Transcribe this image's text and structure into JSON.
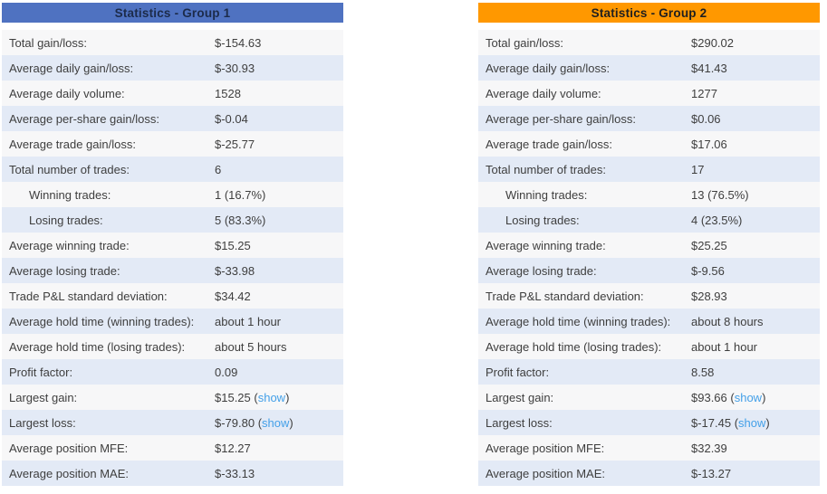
{
  "ui": {
    "paren_open": "(",
    "paren_close": ")",
    "link_color": "#44a0e8",
    "stripe_light": "#f7f7f8",
    "stripe_blue": "#e3eaf6",
    "text_color": "#3e3e3e"
  },
  "tables": [
    {
      "title": "Statistics - Group 1",
      "header_color": "#4f72c1",
      "title_color": "#1c2b4a",
      "rows": [
        {
          "label": "Total gain/loss:",
          "value": "$-154.63",
          "indent": false,
          "link": null
        },
        {
          "label": "Average daily gain/loss:",
          "value": "$-30.93",
          "indent": false,
          "link": null
        },
        {
          "label": "Average daily volume:",
          "value": "1528",
          "indent": false,
          "link": null
        },
        {
          "label": "Average per-share gain/loss:",
          "value": "$-0.04",
          "indent": false,
          "link": null
        },
        {
          "label": "Average trade gain/loss:",
          "value": "$-25.77",
          "indent": false,
          "link": null
        },
        {
          "label": "Total number of trades:",
          "value": "6",
          "indent": false,
          "link": null
        },
        {
          "label": "Winning trades:",
          "value": "1 (16.7%)",
          "indent": true,
          "link": null
        },
        {
          "label": "Losing trades:",
          "value": "5 (83.3%)",
          "indent": true,
          "link": null
        },
        {
          "label": "Average winning trade:",
          "value": "$15.25",
          "indent": false,
          "link": null
        },
        {
          "label": "Average losing trade:",
          "value": "$-33.98",
          "indent": false,
          "link": null
        },
        {
          "label": "Trade P&L standard deviation:",
          "value": "$34.42",
          "indent": false,
          "link": null
        },
        {
          "label": "Average hold time (winning trades):",
          "value": "about 1 hour",
          "indent": false,
          "link": null
        },
        {
          "label": "Average hold time (losing trades):",
          "value": "about 5 hours",
          "indent": false,
          "link": null
        },
        {
          "label": "Profit factor:",
          "value": "0.09",
          "indent": false,
          "link": null
        },
        {
          "label": "Largest gain:",
          "value": "$15.25",
          "indent": false,
          "link": "show"
        },
        {
          "label": "Largest loss:",
          "value": "$-79.80",
          "indent": false,
          "link": "show"
        },
        {
          "label": "Average position MFE:",
          "value": "$12.27",
          "indent": false,
          "link": null
        },
        {
          "label": "Average position MAE:",
          "value": "$-33.13",
          "indent": false,
          "link": null
        }
      ]
    },
    {
      "title": "Statistics - Group 2",
      "header_color": "#ff9800",
      "title_color": "#1f1f1f",
      "rows": [
        {
          "label": "Total gain/loss:",
          "value": "$290.02",
          "indent": false,
          "link": null
        },
        {
          "label": "Average daily gain/loss:",
          "value": "$41.43",
          "indent": false,
          "link": null
        },
        {
          "label": "Average daily volume:",
          "value": "1277",
          "indent": false,
          "link": null
        },
        {
          "label": "Average per-share gain/loss:",
          "value": "$0.06",
          "indent": false,
          "link": null
        },
        {
          "label": "Average trade gain/loss:",
          "value": "$17.06",
          "indent": false,
          "link": null
        },
        {
          "label": "Total number of trades:",
          "value": "17",
          "indent": false,
          "link": null
        },
        {
          "label": "Winning trades:",
          "value": "13 (76.5%)",
          "indent": true,
          "link": null
        },
        {
          "label": "Losing trades:",
          "value": "4 (23.5%)",
          "indent": true,
          "link": null
        },
        {
          "label": "Average winning trade:",
          "value": "$25.25",
          "indent": false,
          "link": null
        },
        {
          "label": "Average losing trade:",
          "value": "$-9.56",
          "indent": false,
          "link": null
        },
        {
          "label": "Trade P&L standard deviation:",
          "value": "$28.93",
          "indent": false,
          "link": null
        },
        {
          "label": "Average hold time (winning trades):",
          "value": "about 8 hours",
          "indent": false,
          "link": null
        },
        {
          "label": "Average hold time (losing trades):",
          "value": "about 1 hour",
          "indent": false,
          "link": null
        },
        {
          "label": "Profit factor:",
          "value": "8.58",
          "indent": false,
          "link": null
        },
        {
          "label": "Largest gain:",
          "value": "$93.66",
          "indent": false,
          "link": "show"
        },
        {
          "label": "Largest loss:",
          "value": "$-17.45",
          "indent": false,
          "link": "show"
        },
        {
          "label": "Average position MFE:",
          "value": "$32.39",
          "indent": false,
          "link": null
        },
        {
          "label": "Average position MAE:",
          "value": "$-13.27",
          "indent": false,
          "link": null
        }
      ]
    }
  ]
}
